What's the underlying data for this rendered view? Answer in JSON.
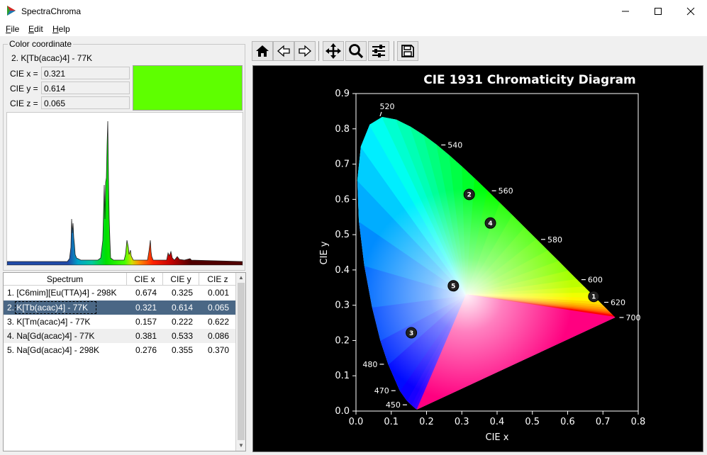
{
  "window": {
    "title": "SpectraChroma"
  },
  "menu": [
    {
      "accel": "F",
      "rest": "ile"
    },
    {
      "accel": "E",
      "rest": "dit"
    },
    {
      "accel": "H",
      "rest": "elp"
    }
  ],
  "color_panel": {
    "group_title": "Color coordinate",
    "selected_label": "2. K[Tb(acac)4] - 77K",
    "cie_x_label": "CIE x =",
    "cie_y_label": "CIE y =",
    "cie_z_label": "CIE z =",
    "cie_x": "0.321",
    "cie_y": "0.614",
    "cie_z": "0.065",
    "swatch_color": "#5eff00"
  },
  "table": {
    "headers": [
      "Spectrum",
      "CIE x",
      "CIE y",
      "CIE z"
    ],
    "rows": [
      {
        "name": "1. [C6mim][Eu(TTA)4] - 298K",
        "x": "0.674",
        "y": "0.325",
        "z": "0.001"
      },
      {
        "name": "2. K[Tb(acac)4] - 77K",
        "x": "0.321",
        "y": "0.614",
        "z": "0.065"
      },
      {
        "name": "3. K[Tm(acac)4] - 77K",
        "x": "0.157",
        "y": "0.222",
        "z": "0.622"
      },
      {
        "name": "4. Na[Gd(acac)4] - 77K",
        "x": "0.381",
        "y": "0.533",
        "z": "0.086"
      },
      {
        "name": "5. Na[Gd(acac)4] - 298K",
        "x": "0.276",
        "y": "0.355",
        "z": "0.370"
      }
    ],
    "selected_index": 1
  },
  "toolbar": [
    "home-icon",
    "back-icon",
    "forward-icon",
    "pan-icon",
    "zoom-icon",
    "configure-icon",
    "save-icon"
  ],
  "chart_data": {
    "type": "scatter",
    "title": "CIE 1931 Chromaticity Diagram",
    "xlabel": "CIE x",
    "ylabel": "CIE y",
    "xlim": [
      0.0,
      0.8
    ],
    "ylim": [
      0.0,
      0.9
    ],
    "xticks": [
      "0.0",
      "0.1",
      "0.2",
      "0.3",
      "0.4",
      "0.5",
      "0.6",
      "0.7",
      "0.8"
    ],
    "yticks": [
      "0.0",
      "0.1",
      "0.2",
      "0.3",
      "0.4",
      "0.5",
      "0.6",
      "0.7",
      "0.8",
      "0.9"
    ],
    "background": "#000000",
    "points": [
      {
        "label": "1",
        "x": 0.674,
        "y": 0.325
      },
      {
        "label": "2",
        "x": 0.321,
        "y": 0.614
      },
      {
        "label": "3",
        "x": 0.157,
        "y": 0.222
      },
      {
        "label": "4",
        "x": 0.381,
        "y": 0.533
      },
      {
        "label": "5",
        "x": 0.276,
        "y": 0.355
      }
    ],
    "wavelength_labels": [
      {
        "text": "450",
        "x": 0.1566,
        "y": 0.0177,
        "side": "left"
      },
      {
        "text": "470",
        "x": 0.1241,
        "y": 0.0578,
        "side": "left"
      },
      {
        "text": "480",
        "x": 0.0913,
        "y": 0.1327,
        "side": "left"
      },
      {
        "text": "520",
        "x": 0.0743,
        "y": 0.8338,
        "side": "top"
      },
      {
        "text": "540",
        "x": 0.2296,
        "y": 0.7543,
        "side": "right"
      },
      {
        "text": "560",
        "x": 0.3731,
        "y": 0.6245,
        "side": "right"
      },
      {
        "text": "580",
        "x": 0.5125,
        "y": 0.4866,
        "side": "right"
      },
      {
        "text": "600",
        "x": 0.627,
        "y": 0.3725,
        "side": "right"
      },
      {
        "text": "620",
        "x": 0.6915,
        "y": 0.3083,
        "side": "right"
      },
      {
        "text": "700",
        "x": 0.7347,
        "y": 0.2653,
        "side": "right"
      }
    ],
    "locus": [
      [
        0.1741,
        0.005
      ],
      [
        0.1738,
        0.0049
      ],
      [
        0.1733,
        0.0048
      ],
      [
        0.1726,
        0.0048
      ],
      [
        0.1714,
        0.0051
      ],
      [
        0.1689,
        0.0069
      ],
      [
        0.1644,
        0.0109
      ],
      [
        0.1566,
        0.0177
      ],
      [
        0.144,
        0.0297
      ],
      [
        0.1241,
        0.0578
      ],
      [
        0.0913,
        0.1327
      ],
      [
        0.0687,
        0.2007
      ],
      [
        0.0454,
        0.295
      ],
      [
        0.0235,
        0.4127
      ],
      [
        0.0082,
        0.5384
      ],
      [
        0.0039,
        0.6548
      ],
      [
        0.0139,
        0.7502
      ],
      [
        0.0389,
        0.812
      ],
      [
        0.0743,
        0.8338
      ],
      [
        0.1142,
        0.8262
      ],
      [
        0.1547,
        0.8059
      ],
      [
        0.1929,
        0.7816
      ],
      [
        0.2296,
        0.7543
      ],
      [
        0.2658,
        0.7243
      ],
      [
        0.3016,
        0.6923
      ],
      [
        0.3373,
        0.6589
      ],
      [
        0.3731,
        0.6245
      ],
      [
        0.4087,
        0.5896
      ],
      [
        0.4441,
        0.5547
      ],
      [
        0.4788,
        0.5202
      ],
      [
        0.5125,
        0.4866
      ],
      [
        0.5448,
        0.4544
      ],
      [
        0.5752,
        0.4242
      ],
      [
        0.6029,
        0.3965
      ],
      [
        0.627,
        0.3725
      ],
      [
        0.6482,
        0.3514
      ],
      [
        0.6658,
        0.334
      ],
      [
        0.6801,
        0.3197
      ],
      [
        0.6915,
        0.3083
      ],
      [
        0.7006,
        0.2993
      ],
      [
        0.7079,
        0.292
      ],
      [
        0.714,
        0.2859
      ],
      [
        0.719,
        0.2809
      ],
      [
        0.723,
        0.277
      ],
      [
        0.726,
        0.274
      ],
      [
        0.7283,
        0.2717
      ],
      [
        0.73,
        0.27
      ],
      [
        0.7311,
        0.2689
      ],
      [
        0.732,
        0.268
      ],
      [
        0.7327,
        0.2673
      ],
      [
        0.7334,
        0.2666
      ],
      [
        0.7347,
        0.2653
      ]
    ]
  }
}
